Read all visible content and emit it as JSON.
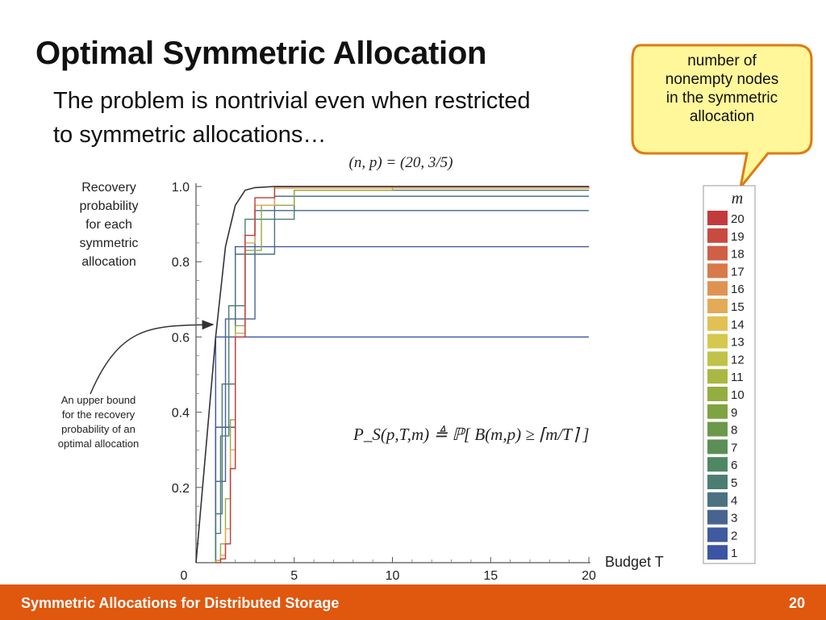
{
  "slide": {
    "title": "Optimal Symmetric Allocation",
    "subtitle_line1": "The problem is nontrivial even when restricted",
    "subtitle_line2": "to symmetric allocations…",
    "callout_lines": [
      "number of",
      "nonempty nodes",
      "in the symmetric",
      "allocation"
    ],
    "footer_text": "Symmetric Allocations for Distributed Storage",
    "page_number": "20",
    "footer_color": "#e0570e",
    "callout_fill": "#fff79a",
    "callout_border": "#e07a12"
  },
  "chart_data": {
    "type": "line",
    "title": "(n, p) = (20, 3/5)",
    "ylabel_lines": [
      "Recovery",
      "probability",
      "for each",
      "symmetric",
      "allocation"
    ],
    "xlabel": "Budget T",
    "xlim": [
      0,
      20
    ],
    "ylim": [
      0,
      1
    ],
    "x_ticks": [
      "0",
      "5",
      "10",
      "15",
      "20"
    ],
    "y_ticks": [
      "0.2",
      "0.4",
      "0.6",
      "0.8",
      "1.0"
    ],
    "formula": "P_S(p,T,m) ≜ ℙ[ B(m,p) ≥ ⌈m/T⌉ ]",
    "annotation_lines": [
      "An upper bound",
      "for the recovery",
      "probability of an",
      "optimal allocation"
    ],
    "legend_title": "m",
    "legend_entries": [
      "20",
      "19",
      "18",
      "17",
      "16",
      "15",
      "14",
      "13",
      "12",
      "11",
      "10",
      "9",
      "8",
      "7",
      "6",
      "5",
      "4",
      "3",
      "2",
      "1"
    ],
    "series_colors": {
      "1": "#3a55a4",
      "2": "#3f5a9e",
      "3": "#46648f",
      "4": "#4a7283",
      "5": "#4b7d73",
      "6": "#4f8763",
      "7": "#5b8f55",
      "8": "#6b9849",
      "9": "#7ea341",
      "10": "#94ad3f",
      "11": "#aab742",
      "12": "#c1c249",
      "13": "#d6c74f",
      "14": "#e1c056",
      "15": "#e3aa57",
      "16": "#df9353",
      "17": "#d8794b",
      "18": "#cf5f45",
      "19": "#c84a41",
      "20": "#c23b3c"
    },
    "series": [
      {
        "name": "1",
        "x": [
          1,
          20
        ],
        "y": [
          0.6,
          0.6
        ]
      },
      {
        "name": "2",
        "x": [
          1,
          2,
          20
        ],
        "y": [
          0.36,
          0.84,
          0.84
        ]
      },
      {
        "name": "3",
        "x": [
          1,
          1.5,
          3,
          20
        ],
        "y": [
          0.216,
          0.648,
          0.936,
          0.936
        ]
      },
      {
        "name": "4",
        "x": [
          1,
          1.33,
          2,
          4,
          20
        ],
        "y": [
          0.13,
          0.475,
          0.82,
          0.974,
          0.974
        ]
      },
      {
        "name": "5",
        "x": [
          1,
          1.25,
          1.67,
          2.5,
          5,
          20
        ],
        "y": [
          0.078,
          0.337,
          0.683,
          0.913,
          0.99,
          0.99
        ]
      },
      {
        "name": "10",
        "x": [
          1,
          1.25,
          1.5,
          1.75,
          2,
          2.5,
          3.33,
          5,
          10,
          20
        ],
        "y": [
          0.006,
          0.05,
          0.17,
          0.38,
          0.63,
          0.83,
          0.95,
          0.99,
          0.999,
          0.999
        ]
      },
      {
        "name": "15",
        "x": [
          1,
          1.25,
          1.5,
          1.75,
          2,
          2.5,
          3,
          4,
          20
        ],
        "y": [
          0.0005,
          0.02,
          0.09,
          0.3,
          0.61,
          0.85,
          0.95,
          0.995,
          0.999
        ]
      },
      {
        "name": "20",
        "x": [
          1,
          1.25,
          1.5,
          1.75,
          2,
          2.5,
          3,
          4,
          20
        ],
        "y": [
          0.0001,
          0.01,
          0.05,
          0.25,
          0.6,
          0.87,
          0.97,
          0.999,
          1.0
        ]
      }
    ],
    "upper_bound": {
      "name": "upper bound",
      "x": [
        0,
        0.5,
        1,
        1.5,
        2,
        2.5,
        3,
        4,
        20
      ],
      "y": [
        0,
        0.3,
        0.6,
        0.84,
        0.95,
        0.99,
        0.997,
        1.0,
        1.0
      ]
    }
  }
}
